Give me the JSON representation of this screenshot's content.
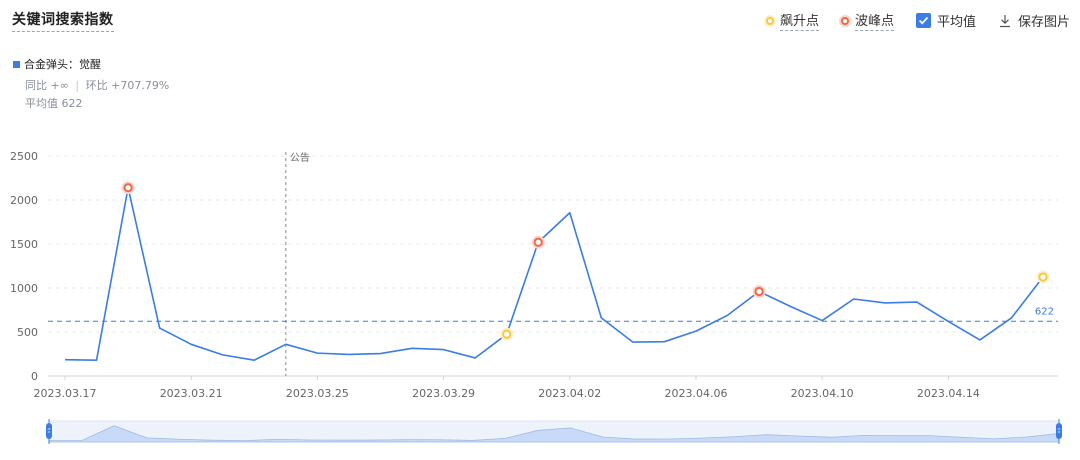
{
  "header": {
    "title": "关键词搜索指数"
  },
  "toolbar": {
    "surge_label": "飙升点",
    "peak_label": "波峰点",
    "average_label": "平均值",
    "average_checked": true,
    "save_label": "保存图片"
  },
  "legend": {
    "series_name": "合金弹头：觉醒",
    "series_color": "#3b7ce6"
  },
  "stats": {
    "yoy_label": "同比 +∞",
    "separator": "|",
    "mom_label": "环比 +707.79%",
    "average_text": "平均值 622"
  },
  "annotation": {
    "label": "公告",
    "date": "2023.03.24"
  },
  "chart_data": {
    "type": "line",
    "x": [
      "2023.03.17",
      "2023.03.18",
      "2023.03.19",
      "2023.03.20",
      "2023.03.21",
      "2023.03.22",
      "2023.03.23",
      "2023.03.24",
      "2023.03.25",
      "2023.03.26",
      "2023.03.27",
      "2023.03.28",
      "2023.03.29",
      "2023.03.30",
      "2023.03.31",
      "2023.04.01",
      "2023.04.02",
      "2023.04.03",
      "2023.04.04",
      "2023.04.05",
      "2023.04.06",
      "2023.04.07",
      "2023.04.08",
      "2023.04.09",
      "2023.04.10",
      "2023.04.11",
      "2023.04.12",
      "2023.04.13",
      "2023.04.14",
      "2023.04.15",
      "2023.04.16",
      "2023.04.17"
    ],
    "series": [
      {
        "name": "合金弹头：觉醒",
        "values": [
          185,
          180,
          2140,
          545,
          360,
          240,
          180,
          360,
          260,
          245,
          255,
          315,
          300,
          205,
          475,
          1520,
          1855,
          660,
          385,
          390,
          510,
          690,
          960,
          790,
          630,
          875,
          830,
          840,
          620,
          410,
          660,
          1125
        ]
      }
    ],
    "xtick_labels": [
      "2023.03.17",
      "2023.03.21",
      "2023.03.25",
      "2023.03.29",
      "2023.04.02",
      "2023.04.06",
      "2023.04.10",
      "2023.04.14"
    ],
    "yticks": [
      0,
      500,
      1000,
      1500,
      2000,
      2500
    ],
    "ylim": [
      0,
      2500
    ],
    "average": 622,
    "average_label": "622",
    "surge_points": [
      "2023.03.31",
      "2023.04.17"
    ],
    "peak_points": [
      "2023.03.19",
      "2023.04.01",
      "2023.04.08"
    ],
    "grid": true,
    "colors": {
      "line": "#3b7ce6",
      "average": "#3b7ce6",
      "grid": "#e6e9ef",
      "surge": "#f7c948",
      "peak": "#f0684a",
      "brush_fill": "#c8daf7"
    }
  }
}
